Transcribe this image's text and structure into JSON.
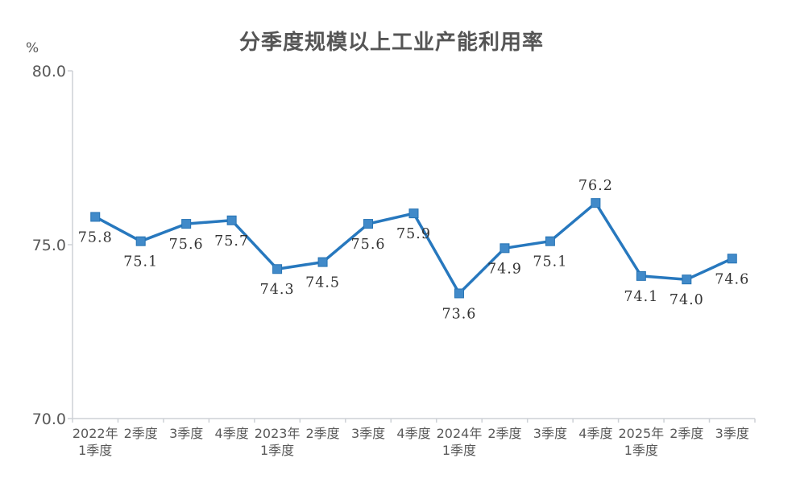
{
  "chart_data": {
    "type": "line",
    "title": "分季度规模以上工业产能利用率",
    "unit_label": "%",
    "categories": [
      [
        "2022年",
        "1季度"
      ],
      [
        "2季度"
      ],
      [
        "3季度"
      ],
      [
        "4季度"
      ],
      [
        "2023年",
        "1季度"
      ],
      [
        "2季度"
      ],
      [
        "3季度"
      ],
      [
        "4季度"
      ],
      [
        "2024年",
        "1季度"
      ],
      [
        "2季度"
      ],
      [
        "3季度"
      ],
      [
        "4季度"
      ],
      [
        "2025年",
        "1季度"
      ],
      [
        "2季度"
      ],
      [
        "3季度"
      ]
    ],
    "values": [
      75.8,
      75.1,
      75.6,
      75.7,
      74.3,
      74.5,
      75.6,
      75.9,
      73.6,
      74.9,
      75.1,
      76.2,
      74.1,
      74.0,
      74.6
    ],
    "data_labels": [
      "75.8",
      "75.1",
      "75.6",
      "75.7",
      "74.3",
      "74.5",
      "75.6",
      "75.9",
      "73.6",
      "74.9",
      "75.1",
      "76.2",
      "74.1",
      "74.0",
      "74.6"
    ],
    "label_positions": [
      "below",
      "below",
      "below",
      "below",
      "below",
      "below",
      "below",
      "below",
      "below",
      "below",
      "below",
      "above",
      "below",
      "below",
      "below"
    ],
    "y_ticks": [
      "80.0",
      "75.0",
      "70.0"
    ],
    "ylim": [
      70,
      80
    ],
    "grid": false,
    "legend": "none",
    "marker_shape": "square",
    "colors": {
      "line": "#2778BE",
      "marker_fill": "#418AC9",
      "marker_stroke": "#2673B4",
      "axis": "#CDD1D6",
      "axis_text": "#595959",
      "data_label_text": "#333333",
      "title_text": "#555555"
    }
  }
}
